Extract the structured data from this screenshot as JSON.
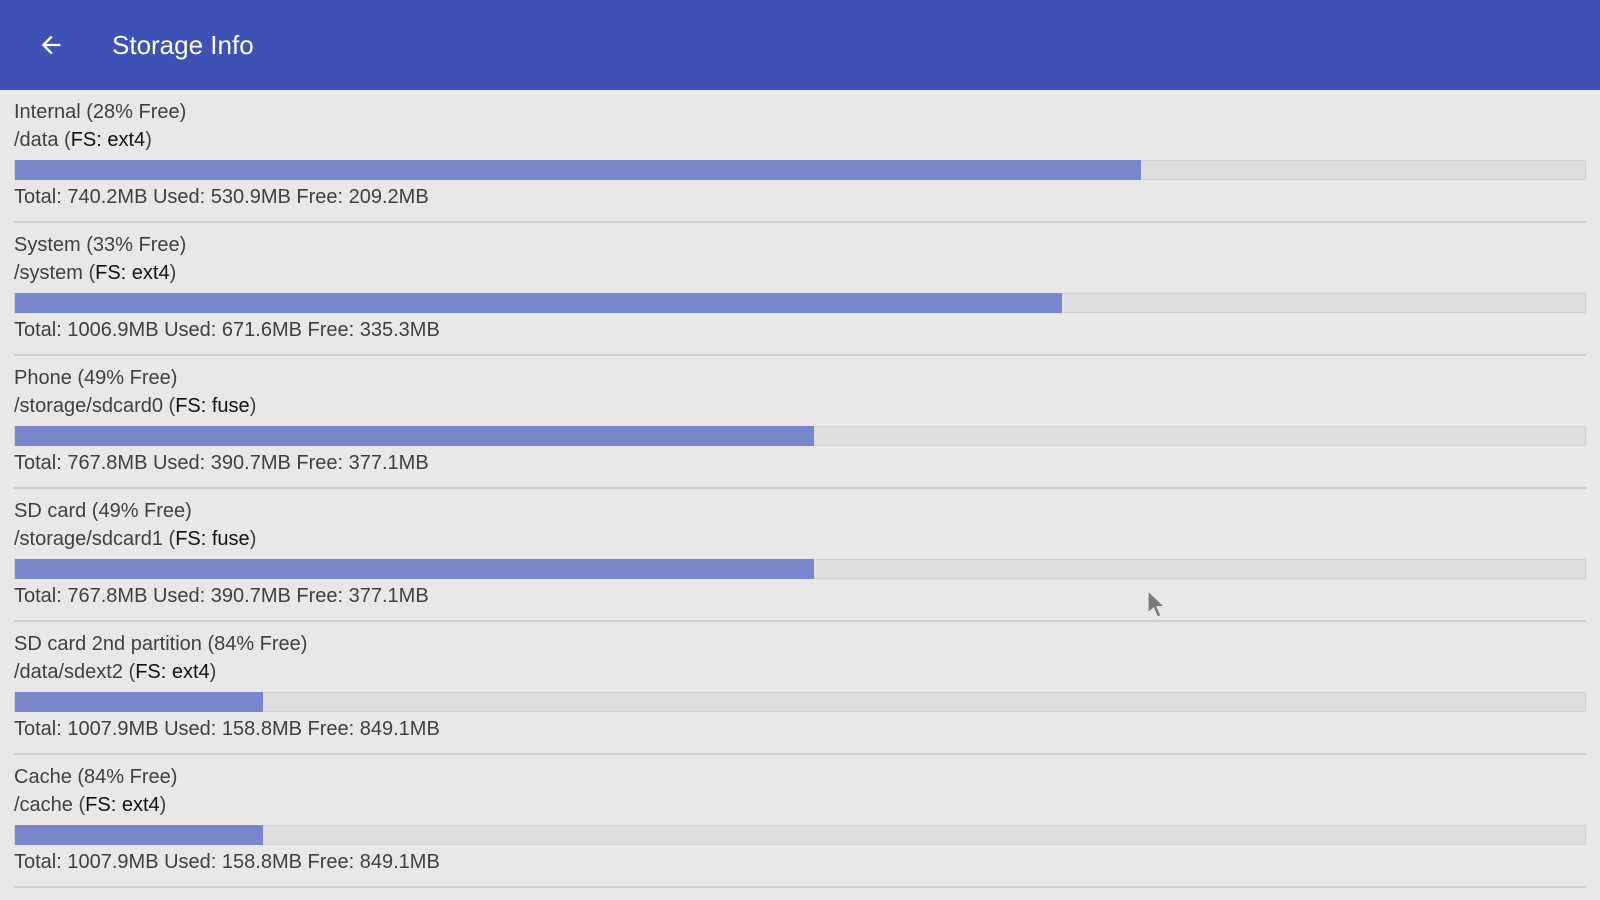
{
  "header": {
    "title": "Storage Info",
    "back_icon": "arrow-left-icon",
    "color": "#3f51b5"
  },
  "storage": [
    {
      "id": "internal",
      "name": "Internal (28% Free)",
      "path": "/data",
      "fs": "FS: ext4",
      "used_fraction": 0.717,
      "stats": "Total: 740.2MB Used: 530.9MB Free: 209.2MB"
    },
    {
      "id": "system",
      "name": "System (33% Free)",
      "path": "/system",
      "fs": "FS: ext4",
      "used_fraction": 0.667,
      "stats": "Total: 1006.9MB Used: 671.6MB Free: 335.3MB"
    },
    {
      "id": "phone",
      "name": "Phone (49% Free)",
      "path": "/storage/sdcard0",
      "fs": "FS: fuse",
      "used_fraction": 0.509,
      "stats": "Total: 767.8MB Used: 390.7MB Free: 377.1MB"
    },
    {
      "id": "sd-card",
      "name": "SD card (49% Free)",
      "path": "/storage/sdcard1",
      "fs": "FS: fuse",
      "used_fraction": 0.509,
      "stats": "Total: 767.8MB Used: 390.7MB Free: 377.1MB"
    },
    {
      "id": "sd-card-2nd-partition",
      "name": "SD card 2nd partition (84% Free)",
      "path": "/data/sdext2",
      "fs": "FS: ext4",
      "used_fraction": 0.158,
      "stats": "Total: 1007.9MB Used: 158.8MB Free: 849.1MB"
    },
    {
      "id": "cache",
      "name": "Cache (84% Free)",
      "path": "/cache",
      "fs": "FS: ext4",
      "used_fraction": 0.158,
      "stats": "Total: 1007.9MB Used: 158.8MB Free: 849.1MB"
    }
  ],
  "colors": {
    "bar_fill": "#7986cb",
    "bar_track": "#dedede",
    "background": "#e8e8e8"
  }
}
